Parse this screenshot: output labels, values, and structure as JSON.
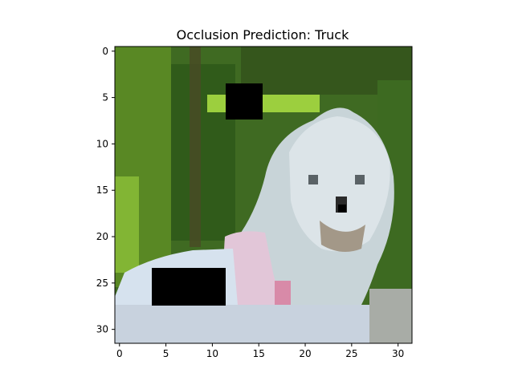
{
  "title": "Occlusion Prediction: Truck",
  "image": {
    "grid_size": 32,
    "description_colors": {
      "background_green": "#3f6b1f",
      "bright_green": "#8fc43a",
      "dog_white": "#d6e0e4",
      "pink_fabric": "#e0bcd0",
      "occlusion": "#000000"
    },
    "occlusion_patches": [
      {
        "row_start": 4,
        "row_end": 7,
        "col_start": 12,
        "col_end": 15
      },
      {
        "row_start": 24,
        "row_end": 27,
        "col_start": 4,
        "col_end": 11
      }
    ]
  },
  "axes": {
    "x_ticks": [
      "0",
      "5",
      "10",
      "15",
      "20",
      "25",
      "30"
    ],
    "y_ticks": [
      "0",
      "5",
      "10",
      "15",
      "20",
      "25",
      "30"
    ],
    "x_tick_values": [
      0,
      5,
      10,
      15,
      20,
      25,
      30
    ],
    "y_tick_values": [
      0,
      5,
      10,
      15,
      20,
      25,
      30
    ]
  }
}
